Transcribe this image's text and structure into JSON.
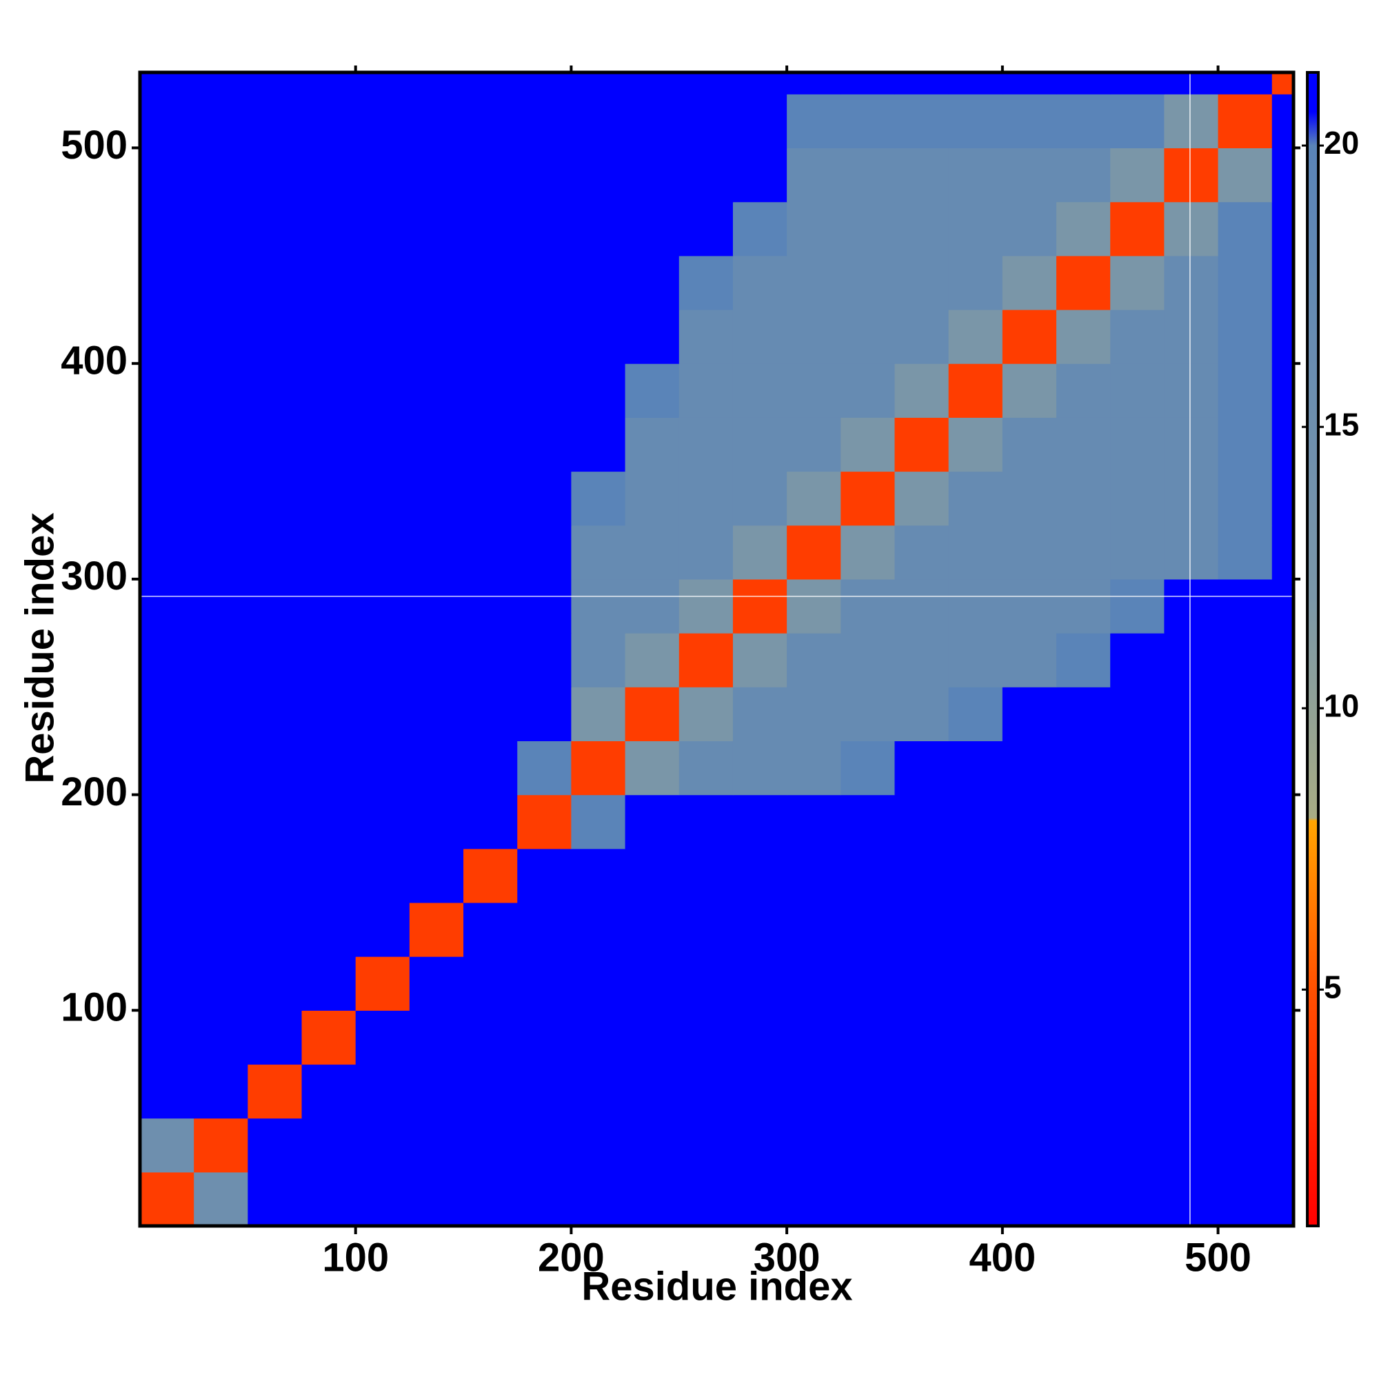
{
  "chart_data": {
    "type": "heatmap",
    "xlabel": "Residue index",
    "ylabel": "Residue index",
    "xlim": [
      0,
      535
    ],
    "ylim": [
      0,
      535
    ],
    "xticks": [
      100,
      200,
      300,
      400,
      500
    ],
    "yticks": [
      100,
      200,
      300,
      400,
      500
    ],
    "xbins": [
      0,
      25,
      50,
      75,
      100,
      125,
      150,
      175,
      200,
      225,
      250,
      275,
      300,
      325,
      350,
      375,
      400,
      425,
      450,
      475,
      500,
      525,
      550
    ],
    "ybins": [
      0,
      25,
      50,
      75,
      100,
      125,
      150,
      175,
      200,
      225,
      250,
      275,
      300,
      325,
      350,
      375,
      400,
      425,
      450,
      475,
      500,
      525,
      550
    ],
    "values": [
      [
        4,
        15,
        21,
        21,
        21,
        21,
        21,
        21,
        21,
        21,
        21,
        21,
        21,
        21,
        21,
        21,
        21,
        21,
        21,
        21,
        21,
        21
      ],
      [
        15,
        4,
        21,
        21,
        21,
        21,
        21,
        21,
        21,
        21,
        21,
        21,
        21,
        21,
        21,
        21,
        21,
        21,
        21,
        21,
        21,
        21
      ],
      [
        21,
        21,
        4,
        21,
        21,
        21,
        21,
        21,
        21,
        21,
        21,
        21,
        21,
        21,
        21,
        21,
        21,
        21,
        21,
        21,
        21,
        21
      ],
      [
        21,
        21,
        21,
        4,
        21,
        21,
        21,
        21,
        21,
        21,
        21,
        21,
        21,
        21,
        21,
        21,
        21,
        21,
        21,
        21,
        21,
        21
      ],
      [
        21,
        21,
        21,
        21,
        4,
        21,
        21,
        21,
        21,
        21,
        21,
        21,
        21,
        21,
        21,
        21,
        21,
        21,
        21,
        21,
        21,
        21
      ],
      [
        21,
        21,
        21,
        21,
        21,
        4,
        21,
        21,
        21,
        21,
        21,
        21,
        21,
        21,
        21,
        21,
        21,
        21,
        21,
        21,
        21,
        21
      ],
      [
        21,
        21,
        21,
        21,
        21,
        21,
        4,
        21,
        21,
        21,
        21,
        21,
        21,
        21,
        21,
        21,
        21,
        21,
        21,
        21,
        21,
        21
      ],
      [
        21,
        21,
        21,
        21,
        21,
        21,
        21,
        4,
        20,
        21,
        21,
        21,
        21,
        21,
        21,
        21,
        21,
        21,
        21,
        21,
        21,
        21
      ],
      [
        21,
        21,
        21,
        21,
        21,
        21,
        21,
        20,
        4,
        12,
        17,
        17,
        17,
        20,
        21,
        21,
        21,
        21,
        21,
        21,
        21,
        21
      ],
      [
        21,
        21,
        21,
        21,
        21,
        21,
        21,
        21,
        12,
        4,
        12,
        17,
        17,
        17,
        17,
        20,
        21,
        21,
        21,
        21,
        21,
        21
      ],
      [
        21,
        21,
        21,
        21,
        21,
        21,
        21,
        21,
        17,
        12,
        4,
        12,
        17,
        17,
        17,
        17,
        17,
        20,
        21,
        21,
        21,
        21
      ],
      [
        21,
        21,
        21,
        21,
        21,
        21,
        21,
        21,
        17,
        17,
        12,
        4,
        12,
        17,
        17,
        17,
        17,
        17,
        20,
        21,
        21,
        21
      ],
      [
        21,
        21,
        21,
        21,
        21,
        21,
        21,
        21,
        17,
        17,
        17,
        12,
        4,
        12,
        17,
        17,
        17,
        17,
        17,
        17,
        20,
        21
      ],
      [
        21,
        21,
        21,
        21,
        21,
        21,
        21,
        21,
        20,
        17,
        17,
        17,
        12,
        4,
        12,
        17,
        17,
        17,
        17,
        17,
        20,
        21
      ],
      [
        21,
        21,
        21,
        21,
        21,
        21,
        21,
        21,
        21,
        17,
        17,
        17,
        17,
        12,
        4,
        12,
        17,
        17,
        17,
        17,
        20,
        21
      ],
      [
        21,
        21,
        21,
        21,
        21,
        21,
        21,
        21,
        21,
        20,
        17,
        17,
        17,
        17,
        12,
        4,
        12,
        17,
        17,
        17,
        20,
        21
      ],
      [
        21,
        21,
        21,
        21,
        21,
        21,
        21,
        21,
        21,
        21,
        17,
        17,
        17,
        17,
        17,
        12,
        4,
        12,
        17,
        17,
        20,
        21
      ],
      [
        21,
        21,
        21,
        21,
        21,
        21,
        21,
        21,
        21,
        21,
        20,
        17,
        17,
        17,
        17,
        17,
        12,
        4,
        12,
        17,
        20,
        21
      ],
      [
        21,
        21,
        21,
        21,
        21,
        21,
        21,
        21,
        21,
        21,
        21,
        20,
        17,
        17,
        17,
        17,
        17,
        12,
        4,
        12,
        20,
        21
      ],
      [
        21,
        21,
        21,
        21,
        21,
        21,
        21,
        21,
        21,
        21,
        21,
        21,
        17,
        17,
        17,
        17,
        17,
        17,
        12,
        4,
        12,
        21
      ],
      [
        21,
        21,
        21,
        21,
        21,
        21,
        21,
        21,
        21,
        21,
        21,
        21,
        20,
        20,
        20,
        20,
        20,
        20,
        20,
        12,
        4,
        21
      ],
      [
        21,
        21,
        21,
        21,
        21,
        21,
        21,
        21,
        21,
        21,
        21,
        21,
        21,
        21,
        21,
        21,
        21,
        21,
        21,
        21,
        21,
        4
      ]
    ],
    "crosshair": {
      "x": 487,
      "y": 292
    },
    "colorscale": [
      {
        "value": 0.8,
        "color": "#ff0000"
      },
      {
        "value": 5,
        "color": "#ff5000"
      },
      {
        "value": 8,
        "color": "#ffa500"
      },
      {
        "value": 8.05,
        "color": "#a8ac84"
      },
      {
        "value": 12,
        "color": "#7a96a8"
      },
      {
        "value": 20,
        "color": "#5a84b8"
      },
      {
        "value": 20.6,
        "color": "#0000ff"
      },
      {
        "value": 21.3,
        "color": "#0000ff"
      }
    ],
    "colorbar": {
      "lim": [
        0.8,
        21.3
      ],
      "ticks": [
        5,
        10,
        15,
        20
      ]
    }
  }
}
